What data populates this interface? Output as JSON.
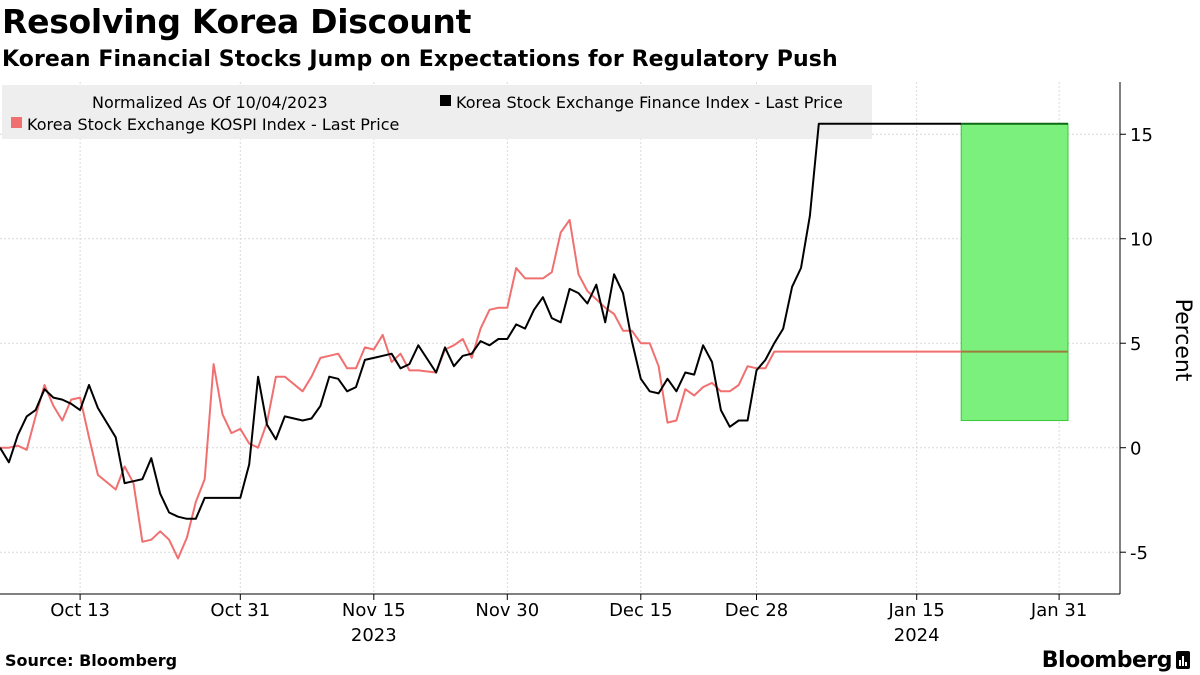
{
  "header": {
    "title": "Resolving Korea Discount",
    "subtitle": "Korean Financial Stocks Jump on Expectations for Regulatory Push"
  },
  "footer": {
    "source": "Source: Bloomberg",
    "brand": "Bloomberg"
  },
  "colors": {
    "finance": "#000000",
    "kospi": "#f07070",
    "highlight_fill": "#7cf07c",
    "highlight_stroke": "#39c839",
    "highlight_finance": "#0d6b12",
    "highlight_kospi": "#9c7d3c",
    "legend_bg": "#eeeeee",
    "grid": "#d9d9d9",
    "axis": "#000000"
  },
  "chart_data": {
    "type": "line",
    "title": "Korean Financial Stocks Jump on Expectations for Regulatory Push",
    "xlabel": "",
    "ylabel": "Percent",
    "ylim": [
      -7,
      17.5
    ],
    "yticks": [
      -5,
      0,
      5,
      10,
      15
    ],
    "xlim": [
      0,
      120
    ],
    "x_axis_note": "x values are calendar days since Oct 4, 2023",
    "xticks": [
      {
        "x": 9,
        "label": "Oct 13",
        "year": ""
      },
      {
        "x": 27,
        "label": "Oct 31",
        "year": ""
      },
      {
        "x": 42,
        "label": "Nov 15",
        "year": "2023"
      },
      {
        "x": 57,
        "label": "Nov 30",
        "year": ""
      },
      {
        "x": 72,
        "label": "Dec 15",
        "year": ""
      },
      {
        "x": 85,
        "label": "Dec 28",
        "year": ""
      },
      {
        "x": 103,
        "label": "Jan 15",
        "year": "2024"
      },
      {
        "x": 119,
        "label": "Jan 31",
        "year": ""
      }
    ],
    "legend": {
      "note": "Normalized As Of 10/04/2023",
      "position": "top-left",
      "entries": [
        "Korea Stock Exchange Finance Index - Last Price",
        "Korea Stock Exchange KOSPI Index - Last Price"
      ]
    },
    "highlight": {
      "x_start": 108,
      "x_end": 120,
      "y_start": 1.3,
      "y_end": 15.5
    },
    "series": [
      {
        "name": "Korea Stock Exchange Finance Index - Last Price",
        "x": [
          0,
          1,
          2,
          3,
          4,
          5,
          6,
          7,
          8,
          9,
          10,
          11,
          13,
          14,
          15,
          16,
          17,
          18,
          19,
          20,
          21,
          22,
          23,
          24,
          25,
          26,
          27,
          28,
          29,
          30,
          31,
          32,
          34,
          35,
          36,
          37,
          38,
          39,
          40,
          41,
          42,
          43,
          44,
          45,
          46,
          47,
          49,
          50,
          51,
          52,
          53,
          54,
          55,
          56,
          57,
          58,
          59,
          60,
          61,
          62,
          63,
          64,
          65,
          66,
          67,
          68,
          69,
          70,
          71,
          72,
          73,
          74,
          75,
          76,
          77,
          78,
          79,
          80,
          81,
          82,
          83,
          84,
          85,
          86,
          87,
          88,
          89,
          90,
          91,
          92,
          93,
          94,
          95,
          96,
          97,
          98,
          99,
          100,
          101,
          102,
          103,
          104,
          105,
          106,
          107,
          108,
          109,
          110,
          111,
          112,
          113,
          114,
          115,
          116,
          117,
          118,
          119,
          120
        ],
        "values": [
          0,
          -0.7,
          0.6,
          1.5,
          1.8,
          2.8,
          2.4,
          2.3,
          2.1,
          1.8,
          3.0,
          1.9,
          0.5,
          -1.7,
          -1.6,
          -1.5,
          -0.5,
          -2.2,
          -3.1,
          -3.3,
          -3.4,
          -3.4,
          -2.4,
          -2.4,
          -2.4,
          -2.4,
          -2.4,
          -0.8,
          3.4,
          1.1,
          0.4,
          1.5,
          1.3,
          1.4,
          2.0,
          3.4,
          3.3,
          2.7,
          2.9,
          4.2,
          4.3,
          4.4,
          4.5,
          3.8,
          4.0,
          4.9,
          3.6,
          4.8,
          3.9,
          4.4,
          4.5,
          5.1,
          4.9,
          5.2,
          5.2,
          5.9,
          5.7,
          6.6,
          7.2,
          6.2,
          6.0,
          7.6,
          7.4,
          6.9,
          7.8,
          6.0,
          8.3,
          7.4,
          5.1,
          3.3,
          2.7,
          2.6,
          3.3,
          2.7,
          3.6,
          3.5,
          4.9,
          4.1,
          1.8,
          1.0,
          1.3,
          1.3,
          3.7,
          4.2,
          5.0,
          5.7,
          7.7,
          8.6,
          11.1,
          15.5,
          15.5,
          15.5,
          15.5,
          15.5,
          15.5,
          15.5,
          15.5,
          15.5,
          15.5,
          15.5,
          15.5,
          15.5,
          15.5,
          15.5,
          15.5,
          15.5,
          15.5,
          15.5,
          15.5,
          15.5,
          15.5,
          15.5,
          15.5,
          15.5,
          15.5,
          15.5,
          15.5,
          15.5
        ]
      },
      {
        "name": "Korea Stock Exchange KOSPI Index - Last Price",
        "x": [
          0,
          1,
          2,
          3,
          4,
          5,
          6,
          7,
          8,
          9,
          10,
          11,
          13,
          14,
          15,
          16,
          17,
          18,
          19,
          20,
          21,
          22,
          23,
          24,
          25,
          26,
          27,
          28,
          29,
          30,
          31,
          32,
          34,
          35,
          36,
          37,
          38,
          39,
          40,
          41,
          42,
          43,
          44,
          45,
          46,
          47,
          49,
          50,
          51,
          52,
          53,
          54,
          55,
          56,
          57,
          58,
          59,
          60,
          61,
          62,
          63,
          64,
          65,
          66,
          67,
          68,
          69,
          70,
          71,
          72,
          73,
          74,
          75,
          76,
          77,
          78,
          79,
          80,
          81,
          82,
          83,
          84,
          85,
          86,
          87,
          88,
          89,
          90,
          91,
          92,
          93,
          94,
          95,
          96,
          97,
          98,
          99,
          100,
          101,
          102,
          103,
          104,
          105,
          106,
          107,
          108,
          109,
          110,
          111,
          112,
          113,
          114,
          115,
          116,
          117,
          118,
          119,
          120
        ],
        "values": [
          0,
          0,
          0.1,
          -0.1,
          1.5,
          3.0,
          2.0,
          1.3,
          2.3,
          2.4,
          0.5,
          -1.3,
          -2.0,
          -0.9,
          -1.7,
          -4.5,
          -4.4,
          -4.0,
          -4.4,
          -5.3,
          -4.3,
          -2.6,
          -1.5,
          4.0,
          1.6,
          0.7,
          0.9,
          0.2,
          0,
          1.2,
          3.4,
          3.4,
          2.7,
          3.4,
          4.3,
          4.4,
          4.5,
          3.8,
          3.8,
          4.8,
          4.7,
          5.4,
          4.1,
          4.5,
          3.7,
          3.7,
          3.6,
          4.7,
          4.9,
          5.2,
          4.3,
          5.7,
          6.6,
          6.7,
          6.7,
          8.6,
          8.1,
          8.1,
          8.1,
          8.4,
          10.3,
          10.9,
          8.3,
          7.5,
          7.1,
          6.7,
          6.4,
          5.6,
          5.6,
          5.0,
          5.0,
          3.9,
          1.2,
          1.3,
          2.8,
          2.5,
          2.9,
          3.1,
          2.7,
          2.7,
          3.0,
          3.9,
          3.8,
          3.8,
          4.6,
          4.6,
          4.6,
          4.6,
          4.6,
          4.6,
          4.6,
          4.6,
          4.6,
          4.6,
          4.6,
          4.6,
          4.6,
          4.6,
          4.6,
          4.6,
          4.6,
          4.6,
          4.6,
          4.6,
          4.6,
          4.6,
          4.6,
          4.6,
          4.6,
          4.6,
          4.6,
          4.6,
          4.6,
          4.6,
          4.6,
          4.6,
          4.6,
          4.6
        ]
      }
    ]
  }
}
